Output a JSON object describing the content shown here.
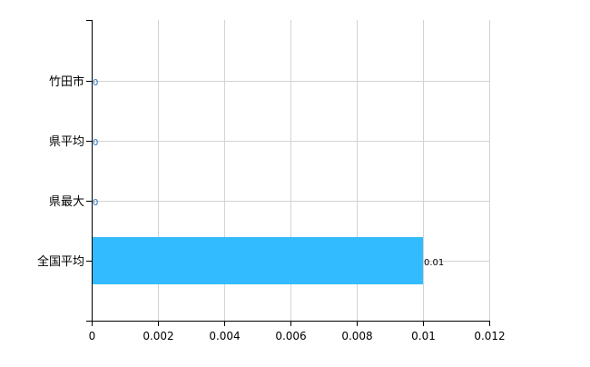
{
  "chart_data": {
    "type": "bar",
    "orientation": "horizontal",
    "categories": [
      "竹田市",
      "県平均",
      "県最大",
      "全国平均"
    ],
    "values": [
      0,
      0,
      0,
      0.01
    ],
    "data_labels": [
      "0",
      "0",
      "0",
      "0.01"
    ],
    "xlim": [
      0,
      0.012
    ],
    "x_ticks": [
      "0",
      "0.002",
      "0.004",
      "0.006",
      "0.008",
      "0.01",
      "0.012"
    ],
    "grid": true,
    "legend": "none",
    "colors": {
      "bar": "#33bbff",
      "grid": "#d3d3d3",
      "axis": "#000000",
      "zero_label": "#1e6fbf"
    }
  }
}
